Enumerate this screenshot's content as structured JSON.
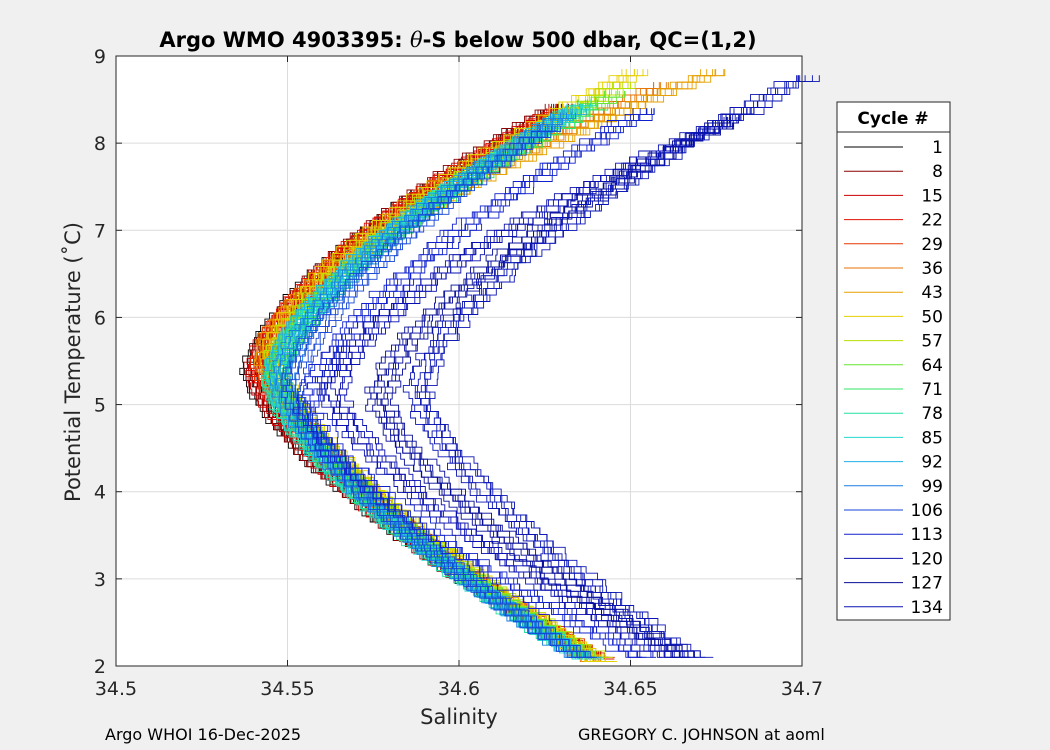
{
  "chart_data": {
    "type": "line",
    "title_prefix": "Argo WMO 4903395: ",
    "title_theta": "θ",
    "title_suffix": "-S below 500 dbar,  QC=(1,2)",
    "xlabel": "Salinity",
    "ylabel": "Potential Temperature (˚C)",
    "xlim": [
      34.5,
      34.7
    ],
    "ylim": [
      2,
      9
    ],
    "xticks": [
      34.5,
      34.55,
      34.6,
      34.65,
      34.7
    ],
    "xtick_labels": [
      "34.5",
      "34.55",
      "34.6",
      "34.65",
      "34.7"
    ],
    "yticks": [
      2,
      3,
      4,
      5,
      6,
      7,
      8,
      9
    ],
    "ytick_labels": [
      "2",
      "3",
      "4",
      "5",
      "6",
      "7",
      "8",
      "9"
    ],
    "grid": true,
    "legend_title": "Cycle #",
    "legend_position": "outside-right",
    "series": [
      {
        "name": "1",
        "color": "#000000",
        "S_min": 34.5405,
        "T_at_min": 5.4,
        "S_top": 34.631,
        "T_top": 8.45,
        "S_bottom": 34.641,
        "T_bottom": 2.1
      },
      {
        "name": "8",
        "color": "#8b0000",
        "S_min": 34.5415,
        "T_at_min": 5.4,
        "S_top": 34.629,
        "T_top": 8.45,
        "S_bottom": 34.64,
        "T_bottom": 2.1
      },
      {
        "name": "15",
        "color": "#cc0000",
        "S_min": 34.542,
        "T_at_min": 5.4,
        "S_top": 34.629,
        "T_top": 8.4,
        "S_bottom": 34.641,
        "T_bottom": 2.1
      },
      {
        "name": "22",
        "color": "#dd1100",
        "S_min": 34.5425,
        "T_at_min": 5.5,
        "S_top": 34.631,
        "T_top": 8.42,
        "S_bottom": 34.642,
        "T_bottom": 2.08
      },
      {
        "name": "29",
        "color": "#e63300",
        "S_min": 34.5435,
        "T_at_min": 5.5,
        "S_top": 34.633,
        "T_top": 8.45,
        "S_bottom": 34.642,
        "T_bottom": 2.1
      },
      {
        "name": "36",
        "color": "#e67300",
        "S_min": 34.544,
        "T_at_min": 5.6,
        "S_top": 34.66,
        "T_top": 8.7,
        "S_bottom": 34.642,
        "T_bottom": 2.05
      },
      {
        "name": "43",
        "color": "#e6a000",
        "S_min": 34.5445,
        "T_at_min": 5.6,
        "S_top": 34.675,
        "T_top": 8.85,
        "S_bottom": 34.643,
        "T_bottom": 2.05
      },
      {
        "name": "50",
        "color": "#e6d000",
        "S_min": 34.546,
        "T_at_min": 5.6,
        "S_top": 34.652,
        "T_top": 8.85,
        "S_bottom": 34.643,
        "T_bottom": 2.05
      },
      {
        "name": "57",
        "color": "#b8e000",
        "S_min": 34.547,
        "T_at_min": 5.5,
        "S_top": 34.648,
        "T_top": 8.7,
        "S_bottom": 34.642,
        "T_bottom": 2.1
      },
      {
        "name": "64",
        "color": "#66e633",
        "S_min": 34.5475,
        "T_at_min": 5.4,
        "S_top": 34.646,
        "T_top": 8.6,
        "S_bottom": 34.64,
        "T_bottom": 2.1
      },
      {
        "name": "71",
        "color": "#33e666",
        "S_min": 34.547,
        "T_at_min": 5.3,
        "S_top": 34.64,
        "T_top": 8.45,
        "S_bottom": 34.639,
        "T_bottom": 2.1
      },
      {
        "name": "78",
        "color": "#22e0a0",
        "S_min": 34.5465,
        "T_at_min": 5.3,
        "S_top": 34.638,
        "T_top": 8.5,
        "S_bottom": 34.638,
        "T_bottom": 2.1
      },
      {
        "name": "85",
        "color": "#22d8d0",
        "S_min": 34.5465,
        "T_at_min": 5.3,
        "S_top": 34.636,
        "T_top": 8.45,
        "S_bottom": 34.639,
        "T_bottom": 2.08
      },
      {
        "name": "92",
        "color": "#20b0e6",
        "S_min": 34.5475,
        "T_at_min": 5.4,
        "S_top": 34.634,
        "T_top": 8.4,
        "S_bottom": 34.638,
        "T_bottom": 2.1
      },
      {
        "name": "99",
        "color": "#1a7fe0",
        "S_min": 34.549,
        "T_at_min": 5.3,
        "S_top": 34.631,
        "T_top": 8.35,
        "S_bottom": 34.637,
        "T_bottom": 2.1
      },
      {
        "name": "106",
        "color": "#1446d8",
        "S_min": 34.552,
        "T_at_min": 5.2,
        "S_top": 34.627,
        "T_top": 8.2,
        "S_bottom": 34.638,
        "T_bottom": 2.1
      },
      {
        "name": "113",
        "color": "#1020cc",
        "S_min": 34.557,
        "T_at_min": 5.0,
        "S_top": 34.655,
        "T_top": 8.4,
        "S_bottom": 34.655,
        "T_bottom": 2.1
      },
      {
        "name": "120",
        "color": "#0a10b0",
        "S_min": 34.564,
        "T_at_min": 5.2,
        "S_top": 34.685,
        "T_top": 8.4,
        "S_bottom": 34.663,
        "T_bottom": 2.1
      },
      {
        "name": "127",
        "color": "#060c98",
        "S_min": 34.5775,
        "T_at_min": 5.1,
        "S_top": 34.68,
        "T_top": 8.3,
        "S_bottom": 34.668,
        "T_bottom": 2.1
      },
      {
        "name": "134",
        "color": "#0a14b4",
        "S_min": 34.589,
        "T_at_min": 5.2,
        "S_top": 34.701,
        "T_top": 8.78,
        "S_bottom": 34.67,
        "T_bottom": 2.1
      }
    ]
  },
  "footer": {
    "left": "Argo WHOI 16-Dec-2025",
    "right": "GREGORY C. JOHNSON at aoml"
  }
}
